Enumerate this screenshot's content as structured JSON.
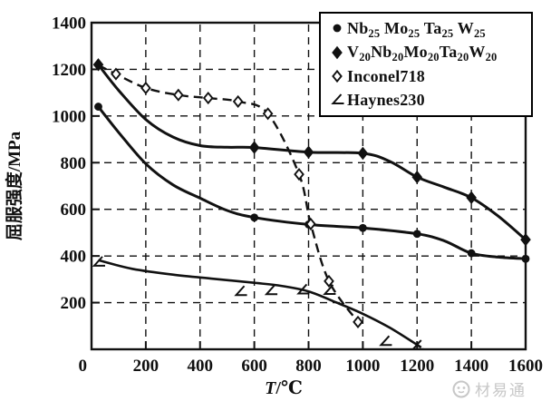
{
  "figure": {
    "y_axis_label": "屈服强度/MPa",
    "x_axis_label_var": "T",
    "x_axis_label_rest": "/℃",
    "watermark": "材易通"
  },
  "colors": {
    "ink": "#111111",
    "background": "#ffffff",
    "watermark_gray": "#c7c7c7"
  },
  "chart_data": {
    "type": "line",
    "title": "",
    "xlabel": "T/℃",
    "ylabel": "屈服强度/MPa",
    "xlim": [
      0,
      1600
    ],
    "ylim": [
      0,
      1400
    ],
    "x_ticks": [
      0,
      200,
      400,
      600,
      800,
      1000,
      1200,
      1400,
      1600
    ],
    "y_ticks": [
      200,
      400,
      600,
      800,
      1000,
      1200,
      1400
    ],
    "grid": "dashed",
    "legend_position": "top-right",
    "series": [
      {
        "id": "nb25-mo25-ta25-w25",
        "name": "Nb25 Mo25 Ta25 W25",
        "name_tokens": [
          {
            "t": "Nb",
            "s": "25"
          },
          {
            "t": " Mo",
            "s": "25"
          },
          {
            "t": " Ta",
            "s": "25"
          },
          {
            "t": " W",
            "s": "25"
          }
        ],
        "marker": "filled-circle",
        "line": "solid",
        "points": [
          [
            25,
            1040
          ],
          [
            600,
            565
          ],
          [
            800,
            535
          ],
          [
            1000,
            520
          ],
          [
            1200,
            495
          ],
          [
            1400,
            412
          ],
          [
            1600,
            388
          ]
        ],
        "curve": [
          [
            25,
            1040
          ],
          [
            100,
            930
          ],
          [
            200,
            795
          ],
          [
            300,
            705
          ],
          [
            400,
            648
          ],
          [
            500,
            595
          ],
          [
            600,
            565
          ],
          [
            800,
            535
          ],
          [
            1000,
            520
          ],
          [
            1200,
            495
          ],
          [
            1300,
            465
          ],
          [
            1400,
            412
          ],
          [
            1500,
            395
          ],
          [
            1600,
            388
          ]
        ]
      },
      {
        "id": "v20-nb20-mo20-ta20-w20",
        "name": "V20Nb20Mo20Ta20W20",
        "name_tokens": [
          {
            "t": "V",
            "s": "20"
          },
          {
            "t": "Nb",
            "s": "20"
          },
          {
            "t": "Mo",
            "s": "20"
          },
          {
            "t": "Ta",
            "s": "20"
          },
          {
            "t": "W",
            "s": "20"
          }
        ],
        "marker": "filled-diamond",
        "line": "solid",
        "points": [
          [
            25,
            1220
          ],
          [
            600,
            865
          ],
          [
            800,
            845
          ],
          [
            1000,
            840
          ],
          [
            1200,
            738
          ],
          [
            1400,
            650
          ],
          [
            1600,
            470
          ]
        ],
        "curve": [
          [
            25,
            1220
          ],
          [
            100,
            1110
          ],
          [
            200,
            985
          ],
          [
            300,
            910
          ],
          [
            400,
            873
          ],
          [
            500,
            866
          ],
          [
            600,
            865
          ],
          [
            800,
            845
          ],
          [
            1000,
            840
          ],
          [
            1100,
            805
          ],
          [
            1200,
            738
          ],
          [
            1300,
            695
          ],
          [
            1400,
            650
          ],
          [
            1500,
            570
          ],
          [
            1600,
            470
          ]
        ]
      },
      {
        "id": "inconel718",
        "name": "Inconel718",
        "name_tokens": [
          {
            "t": "Inconel718"
          }
        ],
        "marker": "open-diamond",
        "line": "dashed",
        "points": [
          [
            90,
            1180
          ],
          [
            200,
            1120
          ],
          [
            320,
            1090
          ],
          [
            430,
            1077
          ],
          [
            540,
            1062
          ],
          [
            650,
            1010
          ],
          [
            765,
            750
          ],
          [
            808,
            537
          ],
          [
            875,
            292
          ],
          [
            982,
            117
          ]
        ],
        "curve": [
          [
            25,
            1218
          ],
          [
            90,
            1180
          ],
          [
            200,
            1120
          ],
          [
            320,
            1090
          ],
          [
            430,
            1077
          ],
          [
            540,
            1062
          ],
          [
            650,
            1010
          ],
          [
            765,
            750
          ],
          [
            808,
            537
          ],
          [
            875,
            292
          ],
          [
            982,
            117
          ]
        ]
      },
      {
        "id": "haynes230",
        "name": "Haynes230",
        "name_tokens": [
          {
            "t": "Haynes230"
          }
        ],
        "marker": "corner",
        "line": "solid",
        "points": [
          [
            25,
            370
          ],
          [
            548,
            244
          ],
          [
            660,
            248
          ],
          [
            778,
            251
          ],
          [
            875,
            249
          ],
          [
            1082,
            30
          ],
          [
            1200,
            12
          ]
        ],
        "curve": [
          [
            25,
            382
          ],
          [
            150,
            345
          ],
          [
            300,
            320
          ],
          [
            450,
            302
          ],
          [
            600,
            285
          ],
          [
            700,
            272
          ],
          [
            800,
            248
          ],
          [
            900,
            202
          ],
          [
            1000,
            152
          ],
          [
            1100,
            92
          ],
          [
            1215,
            8
          ]
        ]
      }
    ]
  }
}
